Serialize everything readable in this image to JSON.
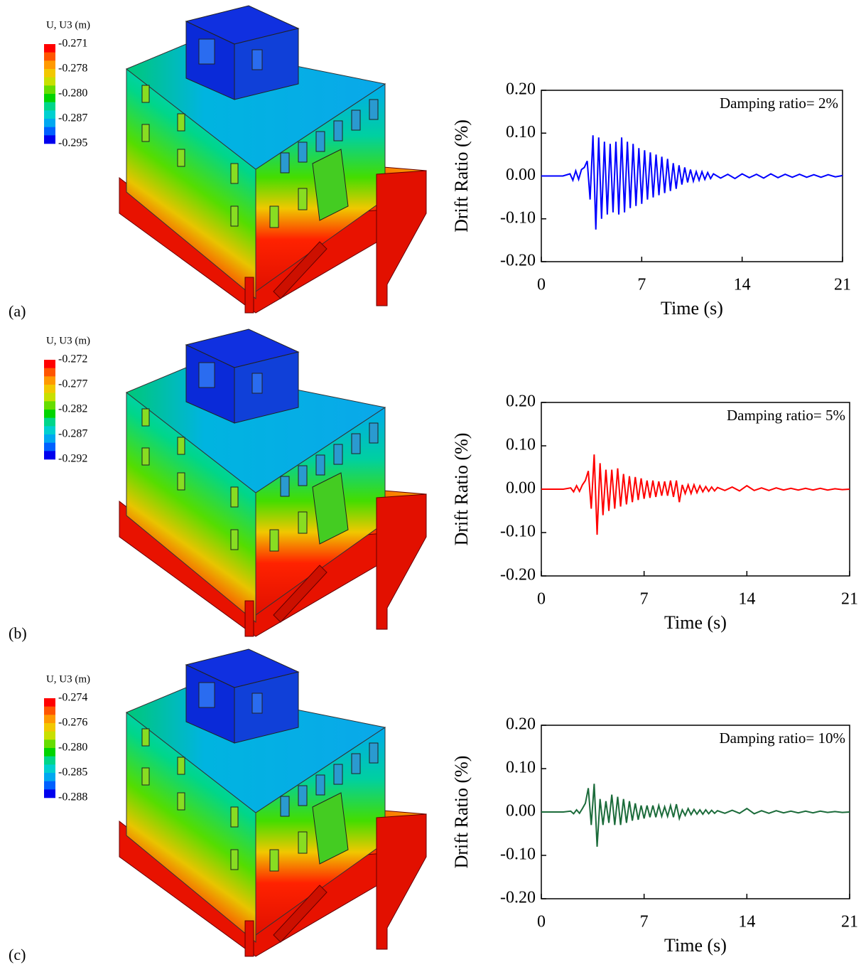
{
  "panel_labels": [
    "(a)",
    "(b)",
    "(c)"
  ],
  "contour_legends": [
    {
      "title": "U, U3 (m)",
      "labels": [
        "-0.271",
        "-0.278",
        "-0.280",
        "-0.287",
        "-0.295"
      ]
    },
    {
      "title": "U, U3 (m)",
      "labels": [
        "-0.272",
        "-0.277",
        "-0.282",
        "-0.287",
        "-0.292"
      ]
    },
    {
      "title": "U, U3 (m)",
      "labels": [
        "-0.274",
        "-0.276",
        "-0.280",
        "-0.285",
        "-0.288"
      ]
    }
  ],
  "chart_data": [
    {
      "type": "line",
      "annotation": "Damping ratio= 2%",
      "x_label": "Time (s)",
      "y_label": "Drift Ratio (%)",
      "color": "#0000ff",
      "xlim": [
        0,
        21
      ],
      "xticks": [
        0,
        7,
        14,
        21
      ],
      "ylim": [
        -0.2,
        0.2
      ],
      "yticks": [
        {
          "value": 0.2,
          "label": "0.20"
        },
        {
          "value": 0.1,
          "label": "0.10"
        },
        {
          "value": 0,
          "label": "0.00"
        },
        {
          "value": -0.1,
          "label": "-0.10"
        },
        {
          "value": -0.2,
          "label": "-0.20"
        }
      ],
      "x": [
        0,
        0.5,
        1,
        1.5,
        2,
        2.2,
        2.4,
        2.6,
        2.8,
        3,
        3.2,
        3.4,
        3.6,
        3.8,
        4,
        4.2,
        4.4,
        4.6,
        4.8,
        5,
        5.2,
        5.4,
        5.6,
        5.8,
        6,
        6.2,
        6.4,
        6.6,
        6.8,
        7,
        7.2,
        7.4,
        7.6,
        7.8,
        8,
        8.2,
        8.4,
        8.6,
        8.8,
        9,
        9.2,
        9.4,
        9.6,
        9.8,
        10,
        10.2,
        10.4,
        10.6,
        10.8,
        11,
        11.2,
        11.4,
        11.6,
        11.8,
        12,
        12.5,
        13,
        13.5,
        14,
        14.5,
        15,
        15.5,
        16,
        16.5,
        17,
        17.5,
        18,
        18.5,
        19,
        19.5,
        20,
        20.5,
        21
      ],
      "values": [
        0,
        0,
        0,
        0,
        0.005,
        -0.01,
        0.012,
        -0.008,
        0.015,
        0.02,
        0.035,
        -0.055,
        0.095,
        -0.125,
        0.09,
        -0.1,
        0.08,
        -0.09,
        0.075,
        -0.085,
        0.08,
        -0.09,
        0.09,
        -0.085,
        0.08,
        -0.075,
        0.075,
        -0.07,
        0.065,
        -0.065,
        0.06,
        -0.055,
        0.055,
        -0.05,
        0.05,
        -0.045,
        0.045,
        -0.04,
        0.04,
        -0.035,
        0.03,
        -0.03,
        0.025,
        -0.02,
        0.02,
        -0.015,
        0.015,
        -0.012,
        0.01,
        -0.01,
        0.01,
        -0.008,
        0.008,
        -0.006,
        0.005,
        -0.005,
        0.004,
        -0.006,
        0.005,
        -0.004,
        0.004,
        -0.005,
        0.005,
        -0.004,
        0.004,
        -0.003,
        0.004,
        -0.003,
        0.003,
        -0.003,
        0.003,
        -0.002,
        0.001
      ]
    },
    {
      "type": "line",
      "annotation": "Damping ratio= 5%",
      "x_label": "Time (s)",
      "y_label": "Drift Ratio (%)",
      "color": "#ff0000",
      "xlim": [
        0,
        21
      ],
      "xticks": [
        0,
        7,
        14,
        21
      ],
      "ylim": [
        -0.2,
        0.2
      ],
      "yticks": [
        {
          "value": 0.2,
          "label": "0.20"
        },
        {
          "value": 0.1,
          "label": "0.10"
        },
        {
          "value": 0,
          "label": "0.00"
        },
        {
          "value": -0.1,
          "label": "-0.10"
        },
        {
          "value": -0.2,
          "label": "-0.20"
        }
      ],
      "x": [
        0,
        0.5,
        1,
        1.5,
        2,
        2.2,
        2.4,
        2.6,
        2.8,
        3,
        3.2,
        3.4,
        3.6,
        3.8,
        4,
        4.2,
        4.4,
        4.6,
        4.8,
        5,
        5.2,
        5.4,
        5.6,
        5.8,
        6,
        6.2,
        6.4,
        6.6,
        6.8,
        7,
        7.2,
        7.4,
        7.6,
        7.8,
        8,
        8.2,
        8.4,
        8.6,
        8.8,
        9,
        9.2,
        9.4,
        9.6,
        9.8,
        10,
        10.2,
        10.4,
        10.6,
        10.8,
        11,
        11.2,
        11.4,
        11.6,
        11.8,
        12,
        12.5,
        13,
        13.5,
        14,
        14.5,
        15,
        15.5,
        16,
        16.5,
        17,
        17.5,
        18,
        18.5,
        19,
        19.5,
        20,
        20.5,
        21
      ],
      "values": [
        0,
        0,
        0,
        0,
        0.003,
        -0.006,
        0.008,
        -0.005,
        0.01,
        0.02,
        0.042,
        -0.045,
        0.08,
        -0.105,
        0.06,
        -0.06,
        0.045,
        -0.05,
        0.045,
        -0.045,
        0.048,
        -0.04,
        0.035,
        -0.035,
        0.03,
        -0.03,
        0.028,
        -0.025,
        0.025,
        -0.022,
        0.02,
        -0.02,
        0.02,
        -0.018,
        0.018,
        -0.015,
        0.018,
        -0.015,
        0.02,
        -0.018,
        0.02,
        -0.03,
        0.01,
        -0.01,
        0.01,
        -0.01,
        0.01,
        -0.008,
        0.008,
        -0.006,
        0.006,
        -0.005,
        0.005,
        -0.004,
        0.004,
        -0.003,
        0.005,
        -0.004,
        0.008,
        -0.003,
        0.003,
        -0.003,
        0.003,
        -0.002,
        0.002,
        -0.002,
        0.002,
        -0.002,
        0.002,
        -0.002,
        0.001,
        -0.001,
        0
      ]
    },
    {
      "type": "line",
      "annotation": "Damping ratio= 10%",
      "x_label": "Time (s)",
      "y_label": "Drift Ratio (%)",
      "color": "#1b6b3a",
      "xlim": [
        0,
        21
      ],
      "xticks": [
        0,
        7,
        14,
        21
      ],
      "ylim": [
        -0.2,
        0.2
      ],
      "yticks": [
        {
          "value": 0.2,
          "label": "0.20"
        },
        {
          "value": 0.1,
          "label": "0.10"
        },
        {
          "value": 0,
          "label": "0.00"
        },
        {
          "value": -0.1,
          "label": "-0.10"
        },
        {
          "value": -0.2,
          "label": "-0.20"
        }
      ],
      "x": [
        0,
        0.5,
        1,
        1.5,
        2,
        2.2,
        2.4,
        2.6,
        2.8,
        3,
        3.2,
        3.4,
        3.6,
        3.8,
        4,
        4.2,
        4.4,
        4.6,
        4.8,
        5,
        5.2,
        5.4,
        5.6,
        5.8,
        6,
        6.2,
        6.4,
        6.6,
        6.8,
        7,
        7.2,
        7.4,
        7.6,
        7.8,
        8,
        8.2,
        8.4,
        8.6,
        8.8,
        9,
        9.2,
        9.4,
        9.6,
        9.8,
        10,
        10.2,
        10.4,
        10.6,
        10.8,
        11,
        11.2,
        11.4,
        11.6,
        11.8,
        12,
        12.5,
        13,
        13.5,
        14,
        14.5,
        15,
        15.5,
        16,
        16.5,
        17,
        17.5,
        18,
        18.5,
        19,
        19.5,
        20,
        20.5,
        21
      ],
      "values": [
        0,
        0,
        0,
        0,
        0.002,
        -0.004,
        0.005,
        -0.003,
        0.008,
        0.02,
        0.055,
        -0.03,
        0.065,
        -0.08,
        0.03,
        -0.03,
        0.025,
        -0.025,
        0.04,
        -0.03,
        0.035,
        -0.03,
        0.03,
        -0.025,
        0.025,
        -0.02,
        0.02,
        -0.018,
        0.015,
        -0.015,
        0.015,
        -0.012,
        0.015,
        -0.012,
        0.015,
        -0.01,
        0.012,
        -0.01,
        0.015,
        -0.012,
        0.018,
        -0.015,
        0.005,
        -0.008,
        0.008,
        -0.006,
        0.006,
        -0.005,
        0.005,
        -0.005,
        0.005,
        -0.004,
        0.004,
        -0.003,
        0.003,
        -0.003,
        0.004,
        -0.003,
        0.008,
        -0.004,
        0.003,
        -0.003,
        0.003,
        -0.002,
        0.002,
        -0.002,
        0.002,
        -0.002,
        0.002,
        -0.001,
        0.001,
        -0.001,
        0
      ]
    }
  ]
}
